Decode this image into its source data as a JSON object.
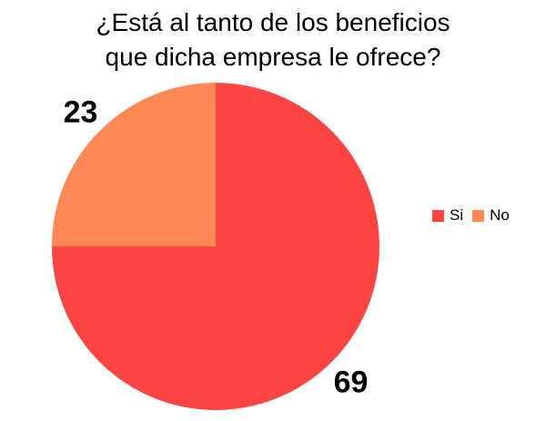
{
  "chart_data": {
    "type": "pie",
    "title_lines": [
      "¿Está al tanto de los beneficios",
      "que dicha empresa le ofrece?"
    ],
    "categories": [
      "Si",
      "No"
    ],
    "values": [
      69,
      23
    ],
    "colors": [
      "#ff4444",
      "#ff8855"
    ],
    "data_labels": [
      "69",
      "23"
    ],
    "legend": {
      "placement": "right",
      "entries": [
        "Si",
        "No"
      ]
    }
  }
}
